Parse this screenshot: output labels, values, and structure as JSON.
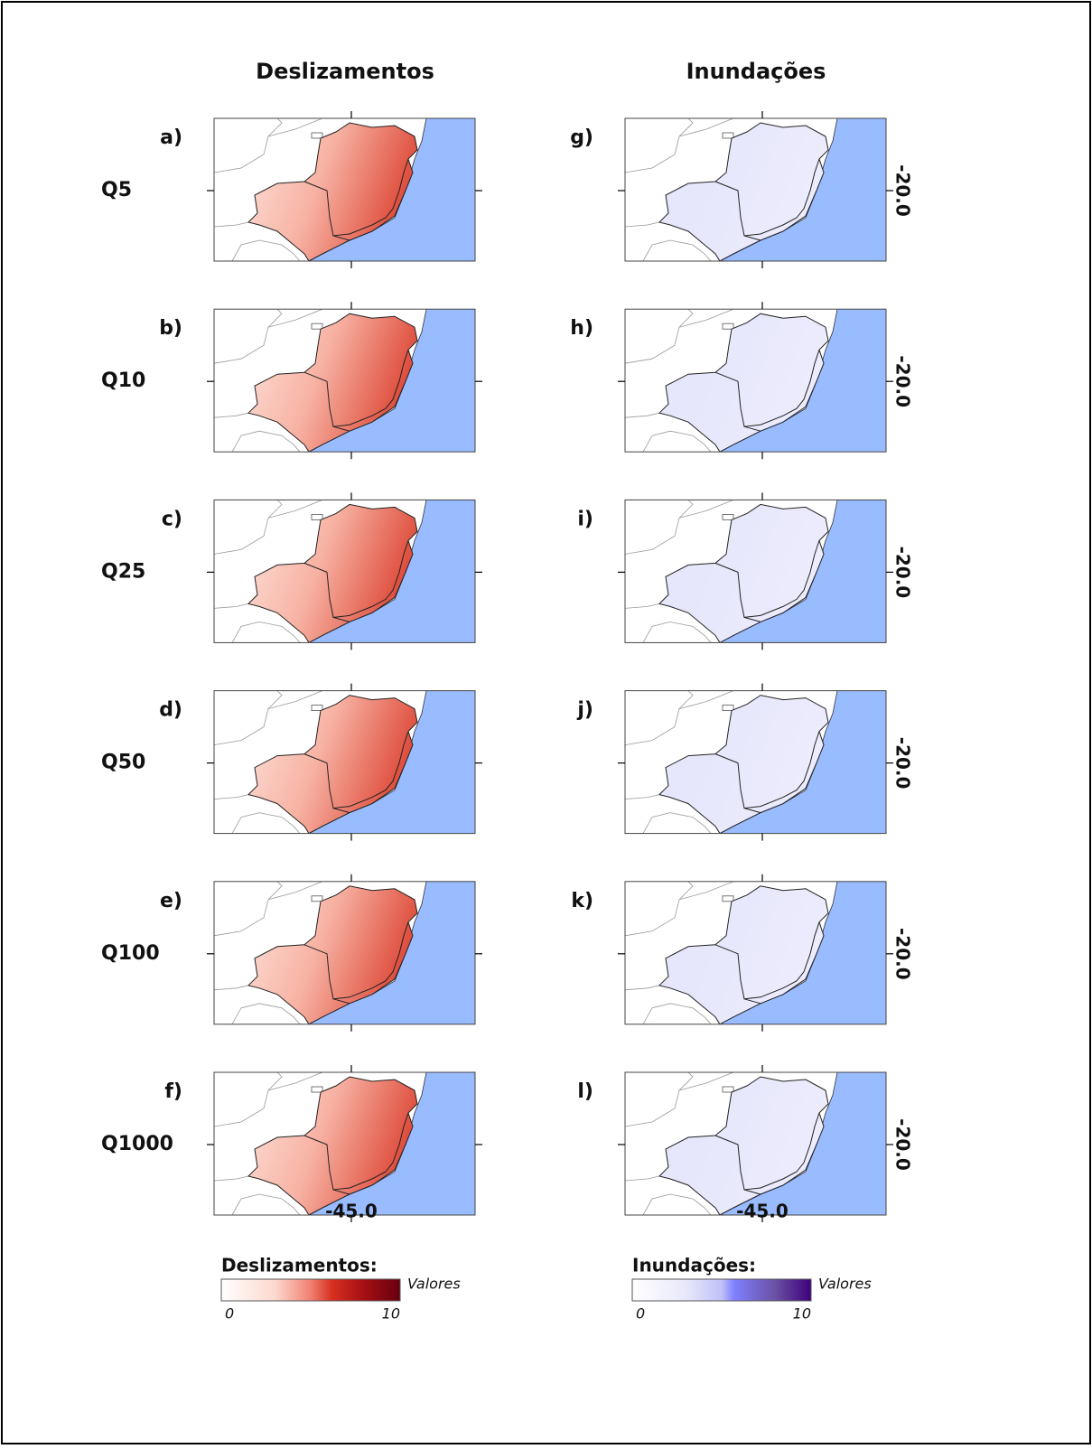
{
  "columns": [
    "Deslizamentos",
    "Inundações"
  ],
  "rows": [
    "Q5",
    "Q10",
    "Q25",
    "Q50",
    "Q100",
    "Q1000"
  ],
  "panel_letters": [
    [
      "a)",
      "b)",
      "c)",
      "d)",
      "e)",
      "f)"
    ],
    [
      "g)",
      "h)",
      "i)",
      "j)",
      "k)",
      "l)"
    ]
  ],
  "axis_labels": {
    "latitude": "-20.0",
    "longitude": "-45.0"
  },
  "legends": [
    {
      "title": "Deslizamentos:",
      "unit": "Valores",
      "min": 0,
      "max": 10
    },
    {
      "title": "Inundações:",
      "unit": "Valores",
      "min": 0,
      "max": 10
    }
  ]
}
